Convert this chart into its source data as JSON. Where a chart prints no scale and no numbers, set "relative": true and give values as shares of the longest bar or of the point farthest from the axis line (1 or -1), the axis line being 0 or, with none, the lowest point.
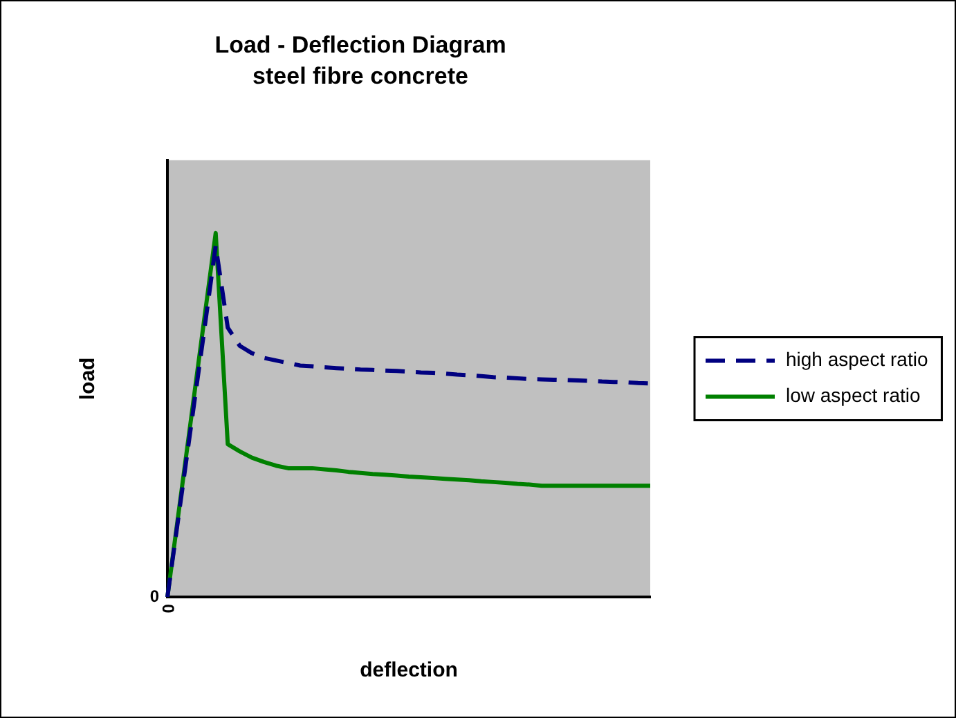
{
  "chart_data": {
    "type": "line",
    "title": "Load - Deflection Diagram",
    "subtitle": "steel fibre concrete",
    "xlabel": "deflection",
    "ylabel": "load",
    "relative": true,
    "legend": "right",
    "marker": "none",
    "annotations": [
      "0",
      "0"
    ],
    "categories": [
      null,
      null,
      null,
      null,
      null,
      null,
      null,
      null,
      null,
      null,
      null,
      null,
      null,
      null,
      null,
      null,
      null,
      null,
      null,
      null,
      null,
      null,
      null,
      null,
      null,
      null,
      null,
      null,
      null,
      null,
      null,
      null,
      null,
      null,
      null,
      null,
      null,
      null,
      null,
      null,
      null
    ],
    "series": [
      {
        "name": "high aspect ratio",
        "color": "#000080",
        "line_style": "dashed",
        "values": [
          0,
          0.24,
          0.48,
          0.72,
          0.965,
          0.74,
          0.69,
          0.67,
          0.657,
          0.65,
          0.643,
          0.636,
          0.634,
          0.631,
          0.629,
          0.627,
          0.625,
          0.624,
          0.622,
          0.621,
          0.619,
          0.617,
          0.616,
          0.614,
          0.611,
          0.609,
          0.607,
          0.604,
          0.603,
          0.601,
          0.599,
          0.598,
          0.597,
          0.596,
          0.595,
          0.594,
          0.592,
          0.591,
          0.59,
          0.588,
          0.587
        ]
      },
      {
        "name": "low aspect ratio",
        "color": "#008000",
        "line_style": "solid",
        "values": [
          0,
          0.25,
          0.5,
          0.75,
          1,
          0.42,
          0.4,
          0.383,
          0.371,
          0.361,
          0.354,
          0.354,
          0.354,
          0.351,
          0.348,
          0.344,
          0.341,
          0.338,
          0.336,
          0.334,
          0.331,
          0.329,
          0.327,
          0.325,
          0.323,
          0.321,
          0.318,
          0.316,
          0.314,
          0.311,
          0.309,
          0.306,
          0.306,
          0.306,
          0.306,
          0.306,
          0.306,
          0.306,
          0.306,
          0.306,
          0.306
        ]
      }
    ]
  }
}
